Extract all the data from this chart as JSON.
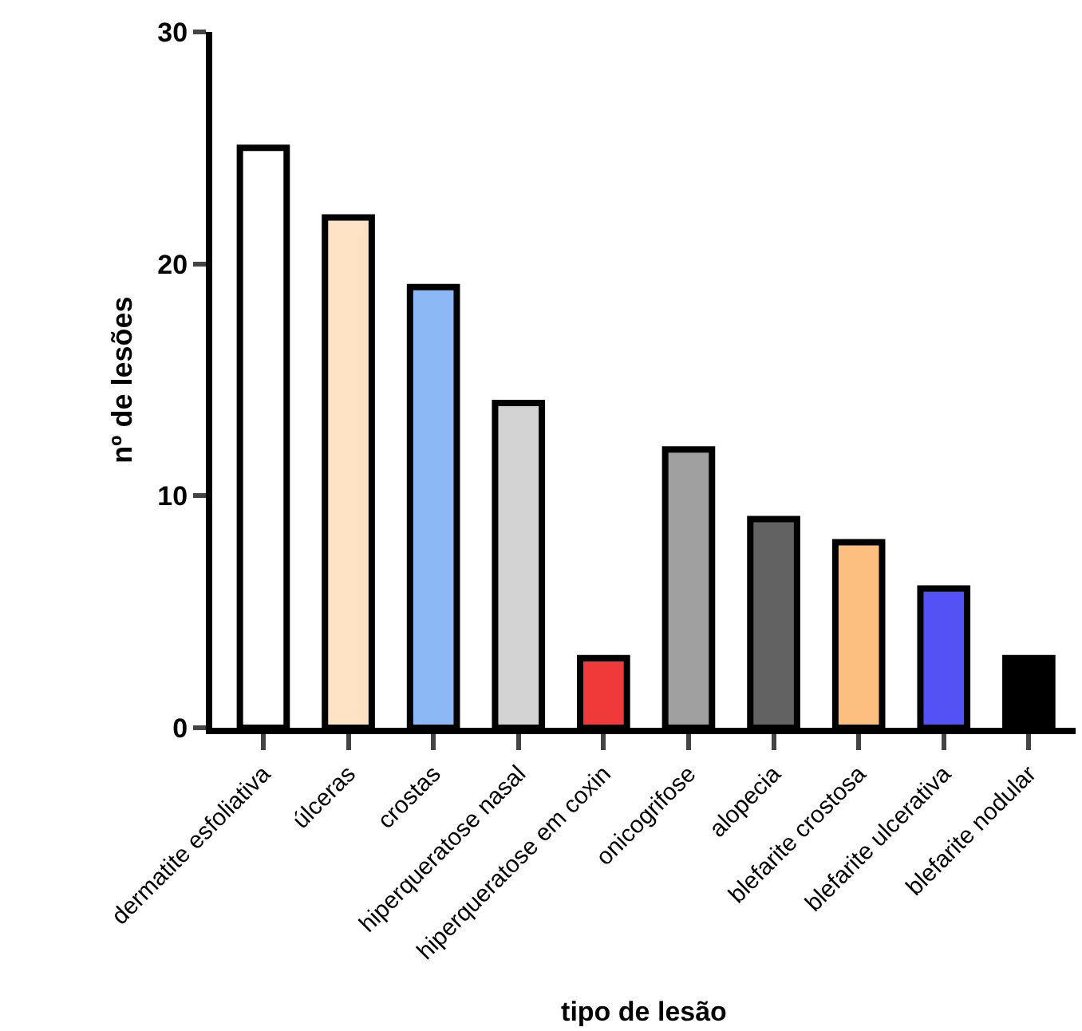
{
  "chart_data": {
    "type": "bar",
    "xlabel": "tipo de lesão",
    "ylabel": "nº de lesões",
    "categories": [
      "dermatite esfoliativa",
      "úlceras",
      "crostas",
      "hiperqueratose nasal",
      "hiperqueratose em coxin",
      "onicogrifose",
      "alopecia",
      "blefarite crostosa",
      "blefarite ulcerativa",
      "blefarite nodular"
    ],
    "values": [
      25,
      22,
      19,
      14,
      3,
      12,
      9,
      8,
      6,
      3
    ],
    "colors": [
      "#ffffff",
      "#fde2c4",
      "#8cb9f5",
      "#d3d3d3",
      "#f03a3a",
      "#a0a0a0",
      "#626262",
      "#fdbf80",
      "#5353f5",
      "#000000"
    ],
    "ylim": [
      0,
      30
    ],
    "yticks": [
      0,
      10,
      20,
      30
    ]
  }
}
